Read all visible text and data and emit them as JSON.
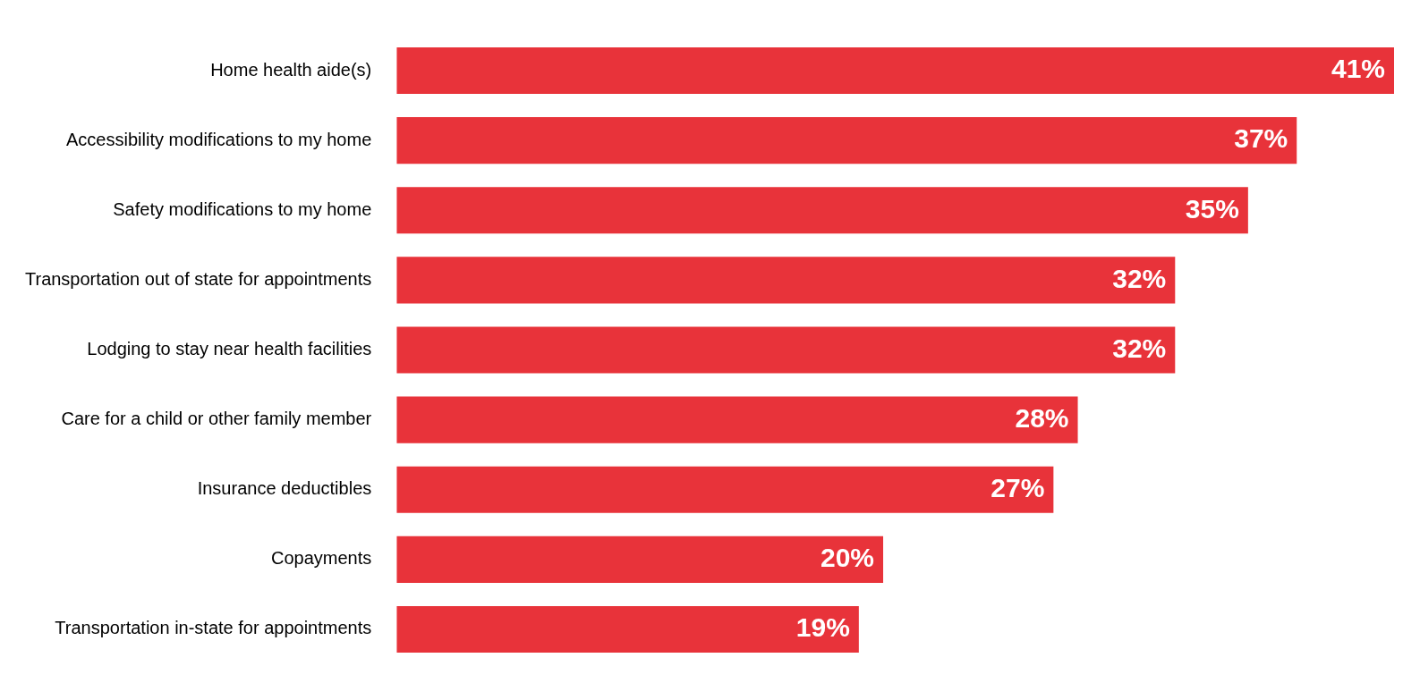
{
  "chart_data": {
    "type": "bar",
    "orientation": "horizontal",
    "categories": [
      "Home health aide(s)",
      "Accessibility modifications to my home",
      "Safety modifications to my home",
      "Transportation out of state for appointments",
      "Lodging to stay near health facilities",
      "Care for a child or other family member",
      "Insurance deductibles",
      "Copayments",
      "Transportation in-state for appointments"
    ],
    "values": [
      41,
      37,
      35,
      32,
      32,
      28,
      27,
      20,
      19
    ],
    "value_labels": [
      "41%",
      "37%",
      "35%",
      "32%",
      "32%",
      "28%",
      "27%",
      "20%",
      "19%"
    ],
    "color": "#e8333a"
  }
}
